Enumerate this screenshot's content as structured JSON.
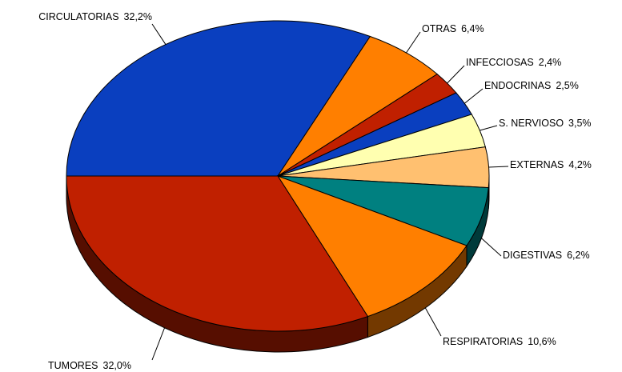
{
  "chart_data": {
    "type": "pie3d",
    "categories": [
      "CIRCULATORIAS",
      "OTRAS",
      "INFECCIOSAS",
      "ENDOCRINAS",
      "S. NERVIOSO",
      "EXTERNAS",
      "DIGESTIVAS",
      "RESPIRATORIAS",
      "TUMORES"
    ],
    "values": [
      32.2,
      6.4,
      2.4,
      2.5,
      3.5,
      4.2,
      6.2,
      10.6,
      32.0
    ],
    "value_labels": [
      "32,2%",
      "6,4%",
      "2,4%",
      "2,5%",
      "3,5%",
      "4,2%",
      "6,2%",
      "10,6%",
      "32,0%"
    ],
    "colors": [
      "#0a3fbf",
      "#ff7f00",
      "#c02000",
      "#0a3fbf",
      "#ffffb0",
      "#ffc070",
      "#008080",
      "#ff7f00",
      "#c02000"
    ]
  }
}
